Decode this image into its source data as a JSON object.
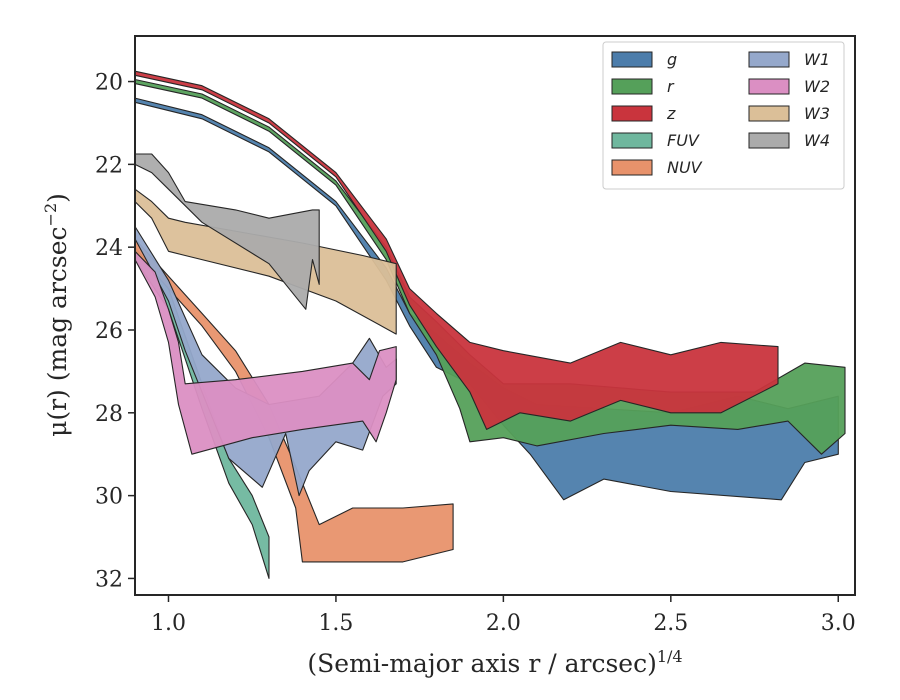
{
  "chart_data": {
    "type": "area",
    "title": "",
    "xlabel": "(Semi-major axis r / arcsec)",
    "xlabel_exponent": "1/4",
    "ylabel": "μ(r) (mag arcsec",
    "ylabel_exponent": "−2",
    "ylabel_close": ")",
    "xlim": [
      0.9,
      3.05
    ],
    "ylim": [
      32.4,
      18.9
    ],
    "y_inverted": true,
    "grid": false,
    "legend_position": "upper-right",
    "legend_columns": 2,
    "xticks": [
      1.0,
      1.5,
      2.0,
      2.5,
      3.0
    ],
    "xtick_labels": [
      "1.0",
      "1.5",
      "2.0",
      "2.5",
      "3.0"
    ],
    "yticks": [
      20,
      22,
      24,
      26,
      28,
      30,
      32
    ],
    "ytick_labels": [
      "20",
      "22",
      "24",
      "26",
      "28",
      "30",
      "32"
    ],
    "series": [
      {
        "name": "g",
        "color": "#4c7dab",
        "upper": [
          [
            0.9,
            20.4
          ],
          [
            1.1,
            20.8
          ],
          [
            1.3,
            21.6
          ],
          [
            1.5,
            22.9
          ],
          [
            1.65,
            24.5
          ],
          [
            1.72,
            25.6
          ],
          [
            1.8,
            26.1
          ],
          [
            1.9,
            26.8
          ],
          [
            2.0,
            27.4
          ],
          [
            2.1,
            27.8
          ],
          [
            2.3,
            27.9
          ],
          [
            2.5,
            28.0
          ],
          [
            2.7,
            27.6
          ],
          [
            2.85,
            27.9
          ],
          [
            3.0,
            27.6
          ]
        ],
        "lower": [
          [
            0.9,
            20.5
          ],
          [
            1.1,
            20.9
          ],
          [
            1.3,
            21.7
          ],
          [
            1.5,
            23.0
          ],
          [
            1.65,
            24.8
          ],
          [
            1.72,
            25.9
          ],
          [
            1.8,
            26.9
          ],
          [
            1.9,
            27.3
          ],
          [
            2.0,
            28.3
          ],
          [
            2.08,
            29.0
          ],
          [
            2.18,
            30.1
          ],
          [
            2.3,
            29.6
          ],
          [
            2.5,
            29.9
          ],
          [
            2.83,
            30.1
          ],
          [
            2.9,
            29.2
          ],
          [
            3.0,
            29.0
          ]
        ]
      },
      {
        "name": "r",
        "color": "#55a05a",
        "upper": [
          [
            0.9,
            19.95
          ],
          [
            1.1,
            20.3
          ],
          [
            1.3,
            21.1
          ],
          [
            1.5,
            22.4
          ],
          [
            1.65,
            24.0
          ],
          [
            1.72,
            25.2
          ],
          [
            1.8,
            25.8
          ],
          [
            1.9,
            26.6
          ],
          [
            2.0,
            27.3
          ],
          [
            2.2,
            27.3
          ],
          [
            2.5,
            27.5
          ],
          [
            2.75,
            27.5
          ],
          [
            2.9,
            26.8
          ],
          [
            3.02,
            26.9
          ]
        ],
        "lower": [
          [
            0.9,
            20.05
          ],
          [
            1.1,
            20.4
          ],
          [
            1.3,
            21.2
          ],
          [
            1.5,
            22.5
          ],
          [
            1.65,
            24.3
          ],
          [
            1.72,
            25.6
          ],
          [
            1.8,
            26.6
          ],
          [
            1.87,
            27.9
          ],
          [
            1.9,
            28.7
          ],
          [
            2.0,
            28.6
          ],
          [
            2.1,
            28.8
          ],
          [
            2.3,
            28.5
          ],
          [
            2.5,
            28.3
          ],
          [
            2.7,
            28.4
          ],
          [
            2.85,
            28.2
          ],
          [
            2.95,
            29.0
          ],
          [
            3.02,
            28.5
          ]
        ]
      },
      {
        "name": "z",
        "color": "#c9343d",
        "upper": [
          [
            0.9,
            19.75
          ],
          [
            1.1,
            20.1
          ],
          [
            1.3,
            20.9
          ],
          [
            1.5,
            22.2
          ],
          [
            1.65,
            23.8
          ],
          [
            1.72,
            25.0
          ],
          [
            1.8,
            25.6
          ],
          [
            1.9,
            26.3
          ],
          [
            2.0,
            26.5
          ],
          [
            2.2,
            26.8
          ],
          [
            2.35,
            26.3
          ],
          [
            2.5,
            26.6
          ],
          [
            2.65,
            26.3
          ],
          [
            2.82,
            26.4
          ]
        ],
        "lower": [
          [
            0.9,
            19.85
          ],
          [
            1.1,
            20.2
          ],
          [
            1.3,
            21.0
          ],
          [
            1.5,
            22.3
          ],
          [
            1.65,
            24.1
          ],
          [
            1.72,
            25.4
          ],
          [
            1.8,
            26.4
          ],
          [
            1.9,
            27.5
          ],
          [
            1.95,
            28.4
          ],
          [
            2.05,
            28.0
          ],
          [
            2.2,
            28.2
          ],
          [
            2.35,
            27.7
          ],
          [
            2.5,
            28.0
          ],
          [
            2.65,
            28.0
          ],
          [
            2.82,
            27.3
          ]
        ]
      },
      {
        "name": "FUV",
        "color": "#6fb79e",
        "upper": [
          [
            0.9,
            24.0
          ],
          [
            1.0,
            25.0
          ],
          [
            1.1,
            27.3
          ],
          [
            1.18,
            29.1
          ],
          [
            1.25,
            30.0
          ],
          [
            1.3,
            31.0
          ]
        ],
        "lower": [
          [
            0.9,
            24.3
          ],
          [
            1.0,
            25.5
          ],
          [
            1.1,
            27.9
          ],
          [
            1.18,
            29.7
          ],
          [
            1.25,
            30.7
          ],
          [
            1.3,
            32.0
          ]
        ]
      },
      {
        "name": "NUV",
        "color": "#e8926b",
        "upper": [
          [
            0.9,
            23.8
          ],
          [
            1.0,
            24.7
          ],
          [
            1.1,
            25.6
          ],
          [
            1.2,
            26.5
          ],
          [
            1.3,
            27.8
          ],
          [
            1.38,
            29.3
          ],
          [
            1.45,
            30.7
          ],
          [
            1.55,
            30.3
          ],
          [
            1.7,
            30.3
          ],
          [
            1.85,
            30.2
          ]
        ],
        "lower": [
          [
            0.9,
            24.1
          ],
          [
            1.0,
            25.0
          ],
          [
            1.1,
            25.9
          ],
          [
            1.2,
            27.0
          ],
          [
            1.3,
            28.6
          ],
          [
            1.38,
            30.3
          ],
          [
            1.4,
            31.6
          ],
          [
            1.5,
            31.6
          ],
          [
            1.7,
            31.6
          ],
          [
            1.85,
            31.3
          ]
        ]
      },
      {
        "name": "W1",
        "color": "#95a8cb",
        "upper": [
          [
            0.9,
            23.5
          ],
          [
            1.0,
            24.8
          ],
          [
            1.05,
            25.7
          ],
          [
            1.1,
            26.6
          ],
          [
            1.2,
            27.4
          ],
          [
            1.3,
            27.8
          ],
          [
            1.45,
            27.6
          ],
          [
            1.55,
            26.8
          ],
          [
            1.6,
            26.2
          ],
          [
            1.65,
            26.9
          ],
          [
            1.68,
            26.7
          ]
        ],
        "lower": [
          [
            0.9,
            23.8
          ],
          [
            1.0,
            25.3
          ],
          [
            1.05,
            26.5
          ],
          [
            1.1,
            27.5
          ],
          [
            1.18,
            29.1
          ],
          [
            1.28,
            29.8
          ],
          [
            1.35,
            28.5
          ],
          [
            1.39,
            30.0
          ],
          [
            1.42,
            29.4
          ],
          [
            1.5,
            28.7
          ],
          [
            1.58,
            28.9
          ],
          [
            1.64,
            27.6
          ],
          [
            1.68,
            27.3
          ]
        ]
      },
      {
        "name": "W2",
        "color": "#db8fc3",
        "upper": [
          [
            0.9,
            24.1
          ],
          [
            0.96,
            24.6
          ],
          [
            1.0,
            25.5
          ],
          [
            1.03,
            26.3
          ],
          [
            1.05,
            27.3
          ],
          [
            1.2,
            27.2
          ],
          [
            1.4,
            27.0
          ],
          [
            1.55,
            26.8
          ],
          [
            1.6,
            27.2
          ],
          [
            1.63,
            26.5
          ],
          [
            1.68,
            26.4
          ]
        ],
        "lower": [
          [
            0.9,
            24.3
          ],
          [
            0.96,
            25.2
          ],
          [
            1.0,
            26.3
          ],
          [
            1.03,
            27.8
          ],
          [
            1.07,
            29.0
          ],
          [
            1.25,
            28.6
          ],
          [
            1.4,
            28.4
          ],
          [
            1.58,
            28.2
          ],
          [
            1.62,
            28.7
          ],
          [
            1.65,
            28.0
          ],
          [
            1.68,
            27.2
          ]
        ]
      },
      {
        "name": "W3",
        "color": "#dbbf98",
        "upper": [
          [
            0.9,
            22.6
          ],
          [
            0.95,
            22.9
          ],
          [
            1.0,
            23.3
          ],
          [
            1.05,
            23.4
          ],
          [
            1.4,
            23.9
          ],
          [
            1.58,
            24.2
          ],
          [
            1.68,
            24.4
          ]
        ],
        "lower": [
          [
            0.9,
            22.9
          ],
          [
            0.95,
            23.3
          ],
          [
            1.0,
            24.1
          ],
          [
            1.05,
            24.2
          ],
          [
            1.3,
            24.7
          ],
          [
            1.5,
            25.3
          ],
          [
            1.68,
            26.1
          ]
        ]
      },
      {
        "name": "W4",
        "color": "#ababab",
        "upper": [
          [
            0.9,
            21.75
          ],
          [
            0.95,
            21.75
          ],
          [
            1.0,
            22.2
          ],
          [
            1.05,
            22.9
          ],
          [
            1.2,
            23.1
          ],
          [
            1.3,
            23.3
          ],
          [
            1.43,
            23.1
          ],
          [
            1.45,
            23.1
          ]
        ],
        "lower": [
          [
            0.9,
            22.0
          ],
          [
            0.95,
            22.2
          ],
          [
            1.0,
            22.6
          ],
          [
            1.1,
            23.4
          ],
          [
            1.3,
            24.4
          ],
          [
            1.41,
            25.5
          ],
          [
            1.43,
            24.3
          ],
          [
            1.45,
            24.9
          ]
        ]
      }
    ]
  }
}
